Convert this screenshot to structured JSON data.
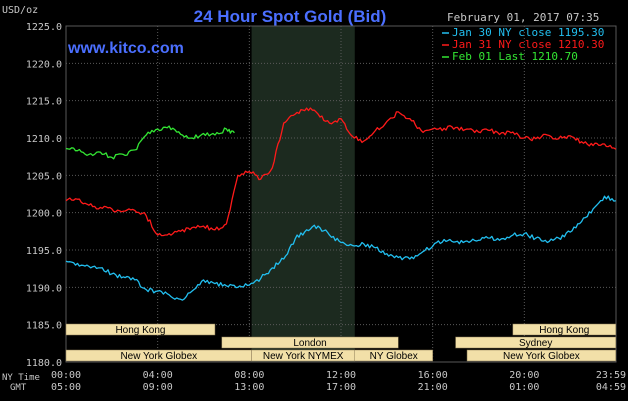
{
  "header": {
    "unit": "USD/oz",
    "title": "24 Hour Spot Gold (Bid)",
    "timestamp": "February 01, 2017 07:35",
    "watermark": "www.kitco.com"
  },
  "sessions": [
    {
      "label": "Hong Kong"
    },
    {
      "label": "London"
    },
    {
      "label": "New York Globex"
    },
    {
      "label": "New York NYMEX"
    },
    {
      "label": "NY Globex"
    },
    {
      "label": "Sydney"
    },
    {
      "label": "Hong Kong"
    },
    {
      "label": "New York Globex"
    }
  ],
  "bottom_labels": {
    "ny_time": "NY Time",
    "gmt": "GMT"
  },
  "colors": {
    "background": "#000000",
    "grid": "#595959",
    "shade": "#1c2a1f",
    "text": "#c8c8c8",
    "title": "#4b6fff",
    "watermark": "#4b6fff",
    "session_fill": "#f2e0a8",
    "jan30": "#22bff0",
    "jan31": "#ff1a1a",
    "feb01": "#33e633"
  },
  "chart_data": {
    "type": "line",
    "title": "24 Hour Spot Gold (Bid)",
    "ylabel": "USD/oz",
    "ylim": [
      1180,
      1225
    ],
    "yticks": [
      "1180.0",
      "1185.0",
      "1190.0",
      "1195.0",
      "1200.0",
      "1205.0",
      "1210.0",
      "1215.0",
      "1220.0",
      "1225.0"
    ],
    "xlim": [
      0,
      24
    ],
    "x_ticks_ny": [
      "00:00",
      "04:00",
      "08:00",
      "12:00",
      "16:00",
      "20:00",
      "23:59"
    ],
    "x_ticks_gmt": [
      "05:00",
      "09:00",
      "13:00",
      "17:00",
      "21:00",
      "01:00",
      "04:59"
    ],
    "grid": true,
    "legend_position": "top-right",
    "shaded_range": [
      8.1,
      12.6
    ],
    "series": [
      {
        "name": "Jan 30 NY close 1195.30",
        "color_key": "jan30",
        "x": [
          0,
          0.5,
          1.0,
          1.5,
          2.0,
          2.5,
          3.0,
          3.5,
          4.0,
          4.5,
          5.0,
          5.5,
          6.0,
          6.5,
          7.0,
          7.5,
          8.0,
          8.5,
          9.0,
          9.5,
          10.0,
          10.5,
          11.0,
          11.5,
          12.0,
          12.5,
          13.0,
          13.5,
          14.0,
          14.5,
          15.0,
          15.5,
          16.0,
          16.5,
          17.0,
          17.5,
          18.0,
          18.5,
          19.0,
          19.5,
          20.0,
          20.5,
          21.0,
          21.5,
          22.0,
          22.5,
          23.0,
          23.5,
          23.99
        ],
        "y": [
          1193.5,
          1193.2,
          1192.8,
          1192.6,
          1191.8,
          1191.4,
          1191.0,
          1189.7,
          1189.5,
          1189.0,
          1188.4,
          1189.5,
          1191.0,
          1190.5,
          1190.2,
          1190.0,
          1190.3,
          1191.2,
          1192.6,
          1193.8,
          1196.5,
          1197.7,
          1198.2,
          1197.0,
          1196.0,
          1195.6,
          1195.8,
          1195.3,
          1194.5,
          1194.0,
          1193.8,
          1194.6,
          1195.5,
          1196.4,
          1196.1,
          1196.2,
          1196.3,
          1196.6,
          1196.5,
          1197.0,
          1197.2,
          1196.6,
          1196.0,
          1196.6,
          1197.4,
          1198.8,
          1200.5,
          1202.2,
          1201.6
        ]
      },
      {
        "name": "Jan 31 NY close 1210.30",
        "color_key": "jan31",
        "x": [
          0,
          0.5,
          1.0,
          1.5,
          2.0,
          2.5,
          3.0,
          3.5,
          4.0,
          4.5,
          5.0,
          5.5,
          6.0,
          6.5,
          7.0,
          7.5,
          8.0,
          8.5,
          9.0,
          9.5,
          10.0,
          10.5,
          11.0,
          11.5,
          12.0,
          12.5,
          13.0,
          13.5,
          14.0,
          14.5,
          15.0,
          15.5,
          16.0,
          16.5,
          17.0,
          17.5,
          18.0,
          18.5,
          19.0,
          19.5,
          20.0,
          20.5,
          21.0,
          21.5,
          22.0,
          22.5,
          23.0,
          23.5,
          23.99
        ],
        "y": [
          1201.6,
          1201.8,
          1201.0,
          1200.7,
          1200.5,
          1200.2,
          1200.3,
          1199.6,
          1197.0,
          1197.2,
          1197.5,
          1198.0,
          1198.2,
          1197.7,
          1198.5,
          1205.0,
          1205.5,
          1204.5,
          1206.0,
          1212.0,
          1213.2,
          1214.0,
          1213.2,
          1212.0,
          1212.6,
          1210.2,
          1209.6,
          1211.0,
          1212.2,
          1213.5,
          1212.6,
          1211.0,
          1211.2,
          1211.3,
          1211.4,
          1211.2,
          1210.8,
          1211.0,
          1210.7,
          1210.8,
          1210.0,
          1209.9,
          1210.4,
          1209.9,
          1210.3,
          1209.5,
          1209.0,
          1209.2,
          1208.5
        ]
      },
      {
        "name": "Feb 01 Last 1210.70",
        "color_key": "feb01",
        "x": [
          0,
          0.5,
          1.0,
          1.5,
          2.0,
          2.5,
          3.0,
          3.5,
          4.0,
          4.5,
          5.0,
          5.5,
          6.0,
          6.5,
          7.0,
          7.35
        ],
        "y": [
          1208.6,
          1208.3,
          1207.8,
          1208.1,
          1207.4,
          1207.8,
          1208.4,
          1210.4,
          1211.2,
          1211.6,
          1210.5,
          1210.0,
          1210.6,
          1210.4,
          1211.2,
          1210.7
        ]
      }
    ]
  }
}
